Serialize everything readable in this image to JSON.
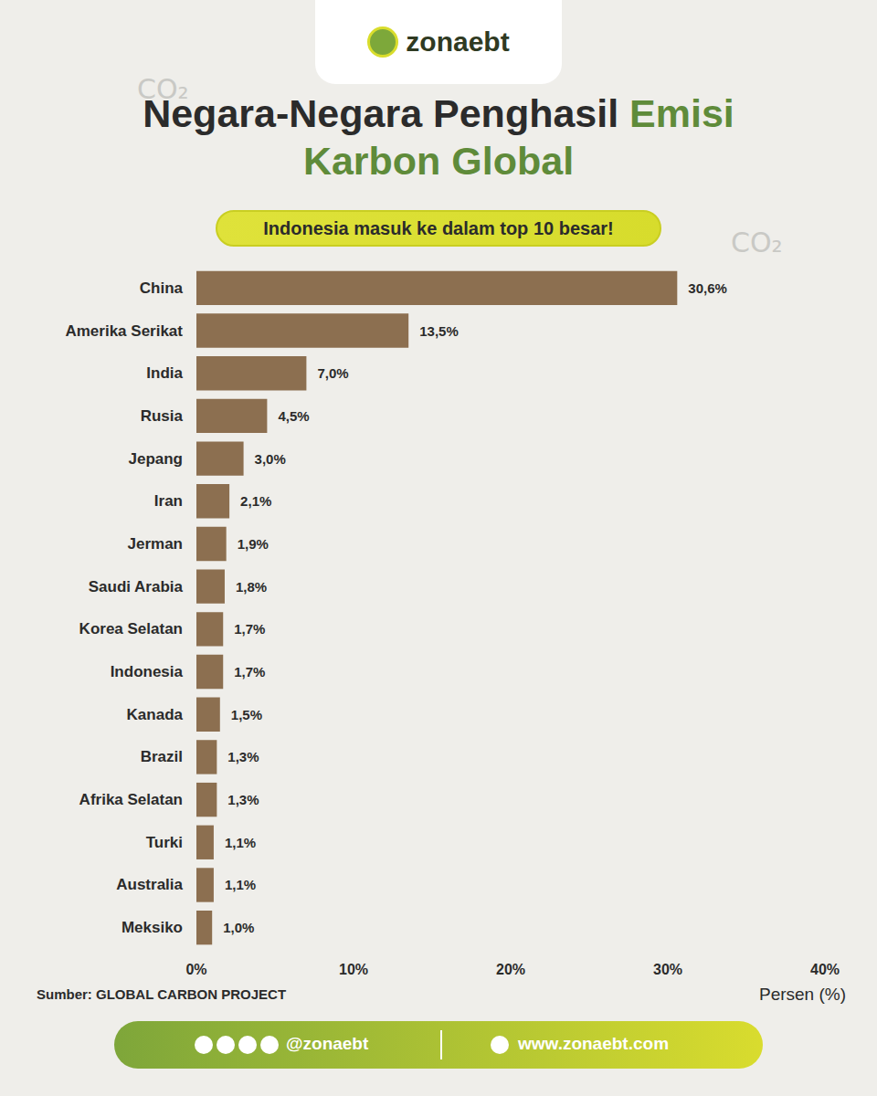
{
  "brand": "zonaebt",
  "background_text": "CO₂",
  "footer": {
    "social": "@zonaebt",
    "website": "www.zonaebt.com"
  },
  "chart_data": {
    "type": "bar",
    "title": "Negara-Negara Penghasil Emisi Karbon Global",
    "subtitle": "Indonesia masuk ke dalam top 10 besar!",
    "source": "Sumber: GLOBAL CARBON PROJECT",
    "x_label": "Persen (%)",
    "orientation": "horizontal",
    "categories": [
      "China",
      "Amerika Serikat",
      "India",
      "Rusia",
      "Jepang",
      "Iran",
      "Jerman",
      "Saudi Arabia",
      "Korea Selatan",
      "Indonesia",
      "Kanada",
      "Brazil",
      "Afrika Selatan",
      "Turki",
      "Australia",
      "Meksiko"
    ],
    "values": [
      30.6,
      13.5,
      7.0,
      4.5,
      3.0,
      2.1,
      1.9,
      1.8,
      1.7,
      1.7,
      1.5,
      1.3,
      1.3,
      1.1,
      1.1,
      1.0
    ],
    "value_labels": [
      "30,6%",
      "13,5%",
      "7,0%",
      "4,5%",
      "3,0%",
      "2,1%",
      "1,9%",
      "1,8%",
      "1,7%",
      "1,7%",
      "1,5%",
      "1,3%",
      "1,3%",
      "1,1%",
      "1,1%",
      "1,0%"
    ],
    "color": "#8c6f50",
    "xlim": [
      0,
      40
    ],
    "xticks": [
      {
        "value": 0,
        "label": "0%"
      },
      {
        "value": 10,
        "label": "10%"
      },
      {
        "value": 20,
        "label": "20%"
      },
      {
        "value": 30,
        "label": "30%"
      },
      {
        "value": 40,
        "label": "40%"
      }
    ],
    "data_labels": true,
    "grid": false
  }
}
